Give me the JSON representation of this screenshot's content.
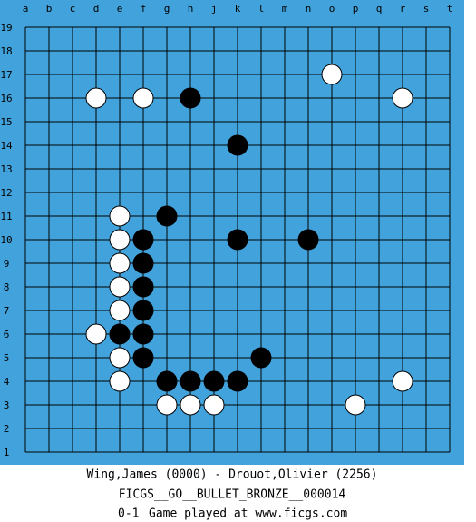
{
  "board": {
    "columns": [
      "a",
      "b",
      "c",
      "d",
      "e",
      "f",
      "g",
      "h",
      "j",
      "k",
      "l",
      "m",
      "n",
      "o",
      "p",
      "q",
      "r",
      "s",
      "t"
    ],
    "rows": [
      19,
      18,
      17,
      16,
      15,
      14,
      13,
      12,
      11,
      10,
      9,
      8,
      7,
      6,
      5,
      4,
      3,
      2,
      1
    ],
    "stones": [
      {
        "color": "white",
        "col": "o",
        "row": 17
      },
      {
        "color": "white",
        "col": "d",
        "row": 16
      },
      {
        "color": "white",
        "col": "f",
        "row": 16
      },
      {
        "color": "black",
        "col": "h",
        "row": 16
      },
      {
        "color": "white",
        "col": "r",
        "row": 16
      },
      {
        "color": "black",
        "col": "k",
        "row": 14
      },
      {
        "color": "white",
        "col": "e",
        "row": 11
      },
      {
        "color": "black",
        "col": "g",
        "row": 11
      },
      {
        "color": "white",
        "col": "e",
        "row": 10
      },
      {
        "color": "black",
        "col": "f",
        "row": 10
      },
      {
        "color": "black",
        "col": "k",
        "row": 10
      },
      {
        "color": "black",
        "col": "n",
        "row": 10
      },
      {
        "color": "white",
        "col": "e",
        "row": 9
      },
      {
        "color": "black",
        "col": "f",
        "row": 9
      },
      {
        "color": "white",
        "col": "e",
        "row": 8
      },
      {
        "color": "black",
        "col": "f",
        "row": 8
      },
      {
        "color": "white",
        "col": "e",
        "row": 7
      },
      {
        "color": "black",
        "col": "f",
        "row": 7
      },
      {
        "color": "white",
        "col": "d",
        "row": 6
      },
      {
        "color": "black",
        "col": "e",
        "row": 6
      },
      {
        "color": "black",
        "col": "f",
        "row": 6
      },
      {
        "color": "white",
        "col": "e",
        "row": 5
      },
      {
        "color": "black",
        "col": "f",
        "row": 5
      },
      {
        "color": "black",
        "col": "l",
        "row": 5
      },
      {
        "color": "white",
        "col": "e",
        "row": 4
      },
      {
        "color": "black",
        "col": "g",
        "row": 4
      },
      {
        "color": "black",
        "col": "h",
        "row": 4
      },
      {
        "color": "black",
        "col": "j",
        "row": 4
      },
      {
        "color": "black",
        "col": "k",
        "row": 4
      },
      {
        "color": "white",
        "col": "r",
        "row": 4
      },
      {
        "color": "white",
        "col": "g",
        "row": 3
      },
      {
        "color": "white",
        "col": "h",
        "row": 3
      },
      {
        "color": "white",
        "col": "j",
        "row": 3
      },
      {
        "color": "white",
        "col": "p",
        "row": 3
      }
    ]
  },
  "footer": {
    "players": "Wing,James (0000) - Drouot,Olivier (2256)",
    "event": "FICGS__GO__BULLET_BRONZE__000014",
    "result": "0-1",
    "note": "Game played at www.ficgs.com"
  }
}
